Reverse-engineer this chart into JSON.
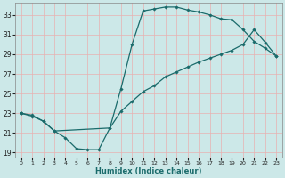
{
  "xlabel": "Humidex (Indice chaleur)",
  "bg_color": "#cce8e8",
  "grid_color_major": "#f0a0a0",
  "grid_color_minor": "#e8d0d0",
  "line_color": "#1a6b6b",
  "xlim": [
    -0.5,
    23.5
  ],
  "ylim": [
    18.5,
    34.2
  ],
  "xticks": [
    0,
    1,
    2,
    3,
    4,
    5,
    6,
    7,
    8,
    9,
    10,
    11,
    12,
    13,
    14,
    15,
    16,
    17,
    18,
    19,
    20,
    21,
    22,
    23
  ],
  "yticks": [
    19,
    21,
    23,
    25,
    27,
    29,
    31,
    33
  ],
  "curve1_x": [
    0,
    1,
    2,
    3,
    4,
    5,
    6,
    7,
    8,
    9,
    10,
    11,
    12,
    13,
    14,
    15,
    16,
    17,
    18,
    19,
    20,
    21,
    22,
    23
  ],
  "curve1_y": [
    23.0,
    22.7,
    22.2,
    21.2,
    20.5,
    19.4,
    19.3,
    19.3,
    21.5,
    25.5,
    30.0,
    33.4,
    33.6,
    33.8,
    33.8,
    33.5,
    33.3,
    33.0,
    32.6,
    32.5,
    31.5,
    30.3,
    29.6,
    28.8
  ],
  "curve2_x": [
    0,
    1,
    2,
    3,
    8,
    9,
    10,
    11,
    12,
    13,
    14,
    15,
    16,
    17,
    18,
    19,
    20,
    21,
    22,
    23
  ],
  "curve2_y": [
    23.0,
    22.8,
    22.2,
    21.2,
    21.5,
    23.2,
    24.2,
    25.2,
    25.8,
    26.7,
    27.2,
    27.7,
    28.2,
    28.6,
    29.0,
    29.4,
    30.0,
    31.5,
    30.2,
    28.8
  ]
}
